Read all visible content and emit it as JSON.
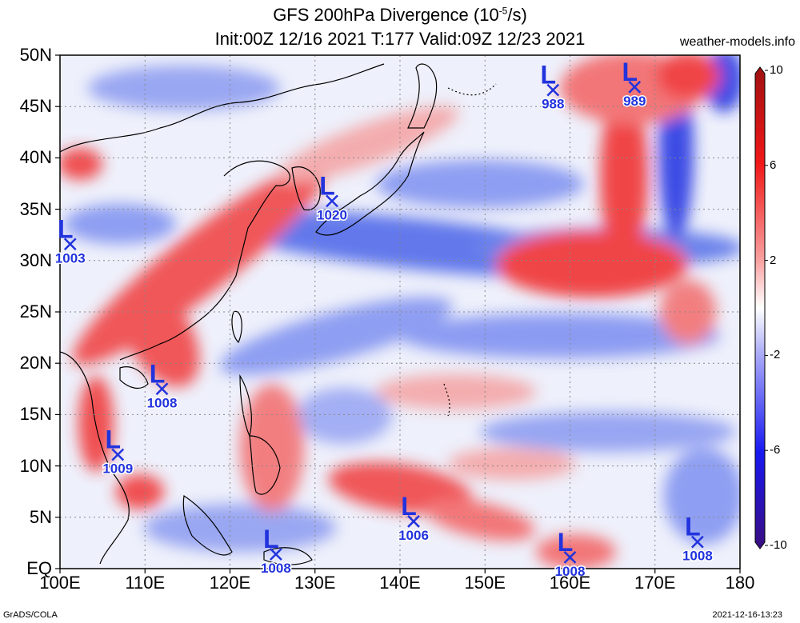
{
  "title": {
    "line1": "GFS 200hPa Divergence (10",
    "exponent": "-5",
    "line1_suffix": "/s)",
    "line2": "Init:00Z 12/16 2021 T:177 Valid:09Z 12/23 2021"
  },
  "site": "weather-models.info",
  "credit": "GrADS/COLA",
  "timestamp": "2021-12-16-13:23",
  "map": {
    "lon_range": [
      100,
      180
    ],
    "lat_range": [
      0,
      50
    ],
    "lat_labels": [
      "50N",
      "45N",
      "40N",
      "35N",
      "30N",
      "25N",
      "20N",
      "15N",
      "10N",
      "5N",
      "EQ"
    ],
    "lat_values": [
      50,
      45,
      40,
      35,
      30,
      25,
      20,
      15,
      10,
      5,
      0
    ],
    "lon_labels": [
      "100E",
      "110E",
      "120E",
      "130E",
      "140E",
      "150E",
      "160E",
      "170E",
      "180"
    ],
    "lon_values": [
      100,
      110,
      120,
      130,
      140,
      150,
      160,
      170,
      180
    ],
    "grid": "dotted",
    "colors": {
      "divergence": "#e8222a",
      "convergence": "#1f3fe8",
      "neutral": "#ffffff",
      "low_marker": "#2233dd"
    }
  },
  "colorbar": {
    "ticks": [
      "10",
      "6",
      "2",
      "-2",
      "-6",
      "-10"
    ],
    "tick_values": [
      10,
      6,
      2,
      -2,
      -6,
      -10
    ],
    "range": [
      -10,
      10
    ]
  },
  "lows": [
    {
      "letter": "L",
      "value": "988",
      "lon": 158.0,
      "lat": 46.6
    },
    {
      "letter": "L",
      "value": "989",
      "lon": 167.6,
      "lat": 46.9
    },
    {
      "letter": "L",
      "value": "1020",
      "lon": 132.0,
      "lat": 35.8
    },
    {
      "letter": "L",
      "value": "1003",
      "lon": 101.2,
      "lat": 31.6
    },
    {
      "letter": "L",
      "value": "1008",
      "lon": 112.0,
      "lat": 17.5
    },
    {
      "letter": "L",
      "value": "1009",
      "lon": 106.8,
      "lat": 11.1
    },
    {
      "letter": "L",
      "value": "1006",
      "lon": 141.6,
      "lat": 4.6
    },
    {
      "letter": "L",
      "value": "1008",
      "lon": 125.4,
      "lat": 1.4
    },
    {
      "letter": "L",
      "value": "1008",
      "lon": 160.0,
      "lat": 1.1
    },
    {
      "letter": "L",
      "value": "1008",
      "lon": 175.0,
      "lat": 2.6
    }
  ]
}
